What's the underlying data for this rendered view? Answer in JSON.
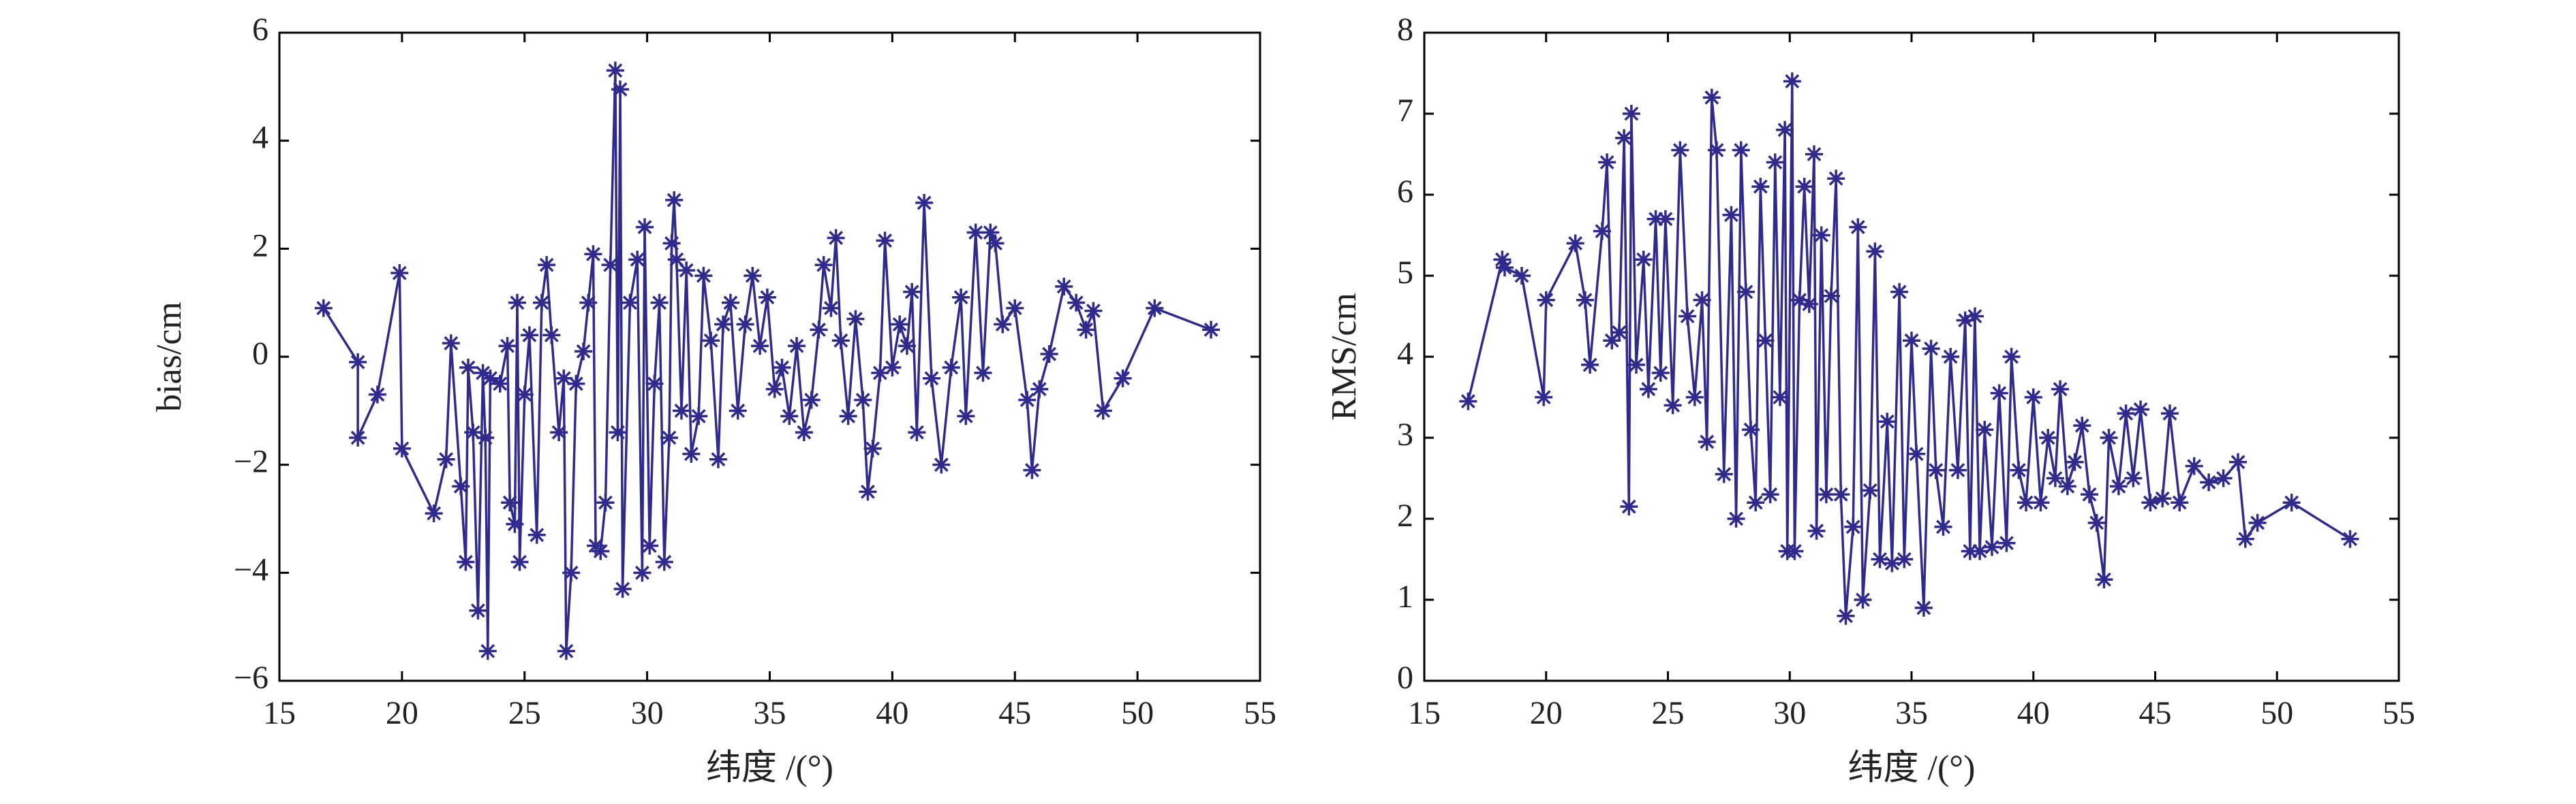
{
  "chart_data": [
    {
      "type": "line",
      "xlabel": "纬度 /(°)",
      "ylabel": "bias/cm",
      "xlim": [
        15,
        55
      ],
      "xticks": [
        15,
        20,
        25,
        30,
        35,
        40,
        45,
        50,
        55
      ],
      "ylim": [
        -6,
        6
      ],
      "yticks": [
        {
          "value": -6,
          "label": "−6"
        },
        {
          "value": -4,
          "label": "−4"
        },
        {
          "value": -2,
          "label": "−2"
        },
        0,
        2,
        4,
        6
      ],
      "x": [
        16.8,
        18.2,
        18.2,
        19,
        19.9,
        20,
        21.3,
        21.8,
        22,
        22.4,
        22.6,
        22.7,
        22.9,
        23.1,
        23.3,
        23.4,
        23.5,
        23.6,
        24,
        24.3,
        24.4,
        24.6,
        24.7,
        24.8,
        25,
        25.2,
        25.5,
        25.7,
        25.9,
        26.1,
        26.4,
        26.6,
        26.7,
        26.9,
        27.1,
        27.4,
        27.6,
        27.8,
        27.9,
        28.1,
        28.3,
        28.5,
        28.7,
        28.8,
        28.9,
        29,
        29.3,
        29.6,
        29.8,
        29.9,
        30.1,
        30.3,
        30.5,
        30.7,
        30.9,
        31,
        31.1,
        31.2,
        31.4,
        31.6,
        31.8,
        32.1,
        32.3,
        32.6,
        32.9,
        33.1,
        33.4,
        33.7,
        34,
        34.3,
        34.6,
        34.9,
        35.2,
        35.5,
        35.8,
        36.1,
        36.4,
        36.7,
        37,
        37.2,
        37.5,
        37.7,
        37.9,
        38.2,
        38.5,
        38.8,
        39,
        39.2,
        39.5,
        39.7,
        40,
        40.3,
        40.6,
        40.8,
        41,
        41.3,
        41.6,
        42,
        42.4,
        42.8,
        43,
        43.4,
        43.7,
        44,
        44.2,
        44.5,
        45,
        45.5,
        45.7,
        46,
        46.4,
        47,
        47.5,
        47.9,
        48.2,
        48.6,
        49.4,
        50.7,
        53
      ],
      "series": [
        {
          "color": "#2f2a8c",
          "values": [
            0.9,
            -0.1,
            -1.5,
            -0.7,
            1.55,
            -1.7,
            -2.9,
            -1.9,
            0.25,
            -2.4,
            -3.8,
            -0.2,
            -1.4,
            -4.7,
            -0.3,
            -1.5,
            -5.45,
            -0.4,
            -0.5,
            0.2,
            -2.7,
            -3.1,
            1.0,
            -3.8,
            -0.7,
            0.4,
            -3.3,
            1.0,
            1.7,
            0.4,
            -1.4,
            -0.4,
            -5.45,
            -4.0,
            -0.5,
            0.1,
            1.0,
            1.9,
            -3.5,
            -3.6,
            -2.7,
            1.7,
            5.3,
            -1.4,
            4.95,
            -4.3,
            1.0,
            1.8,
            -4.0,
            2.4,
            -3.5,
            -0.5,
            1.0,
            -3.8,
            -1.5,
            2.1,
            2.9,
            1.8,
            -1.0,
            1.6,
            -1.8,
            -1.1,
            1.5,
            0.3,
            -1.9,
            0.6,
            1.0,
            -1.0,
            0.6,
            1.5,
            0.2,
            1.1,
            -0.6,
            -0.2,
            -1.1,
            0.2,
            -1.4,
            -0.8,
            0.5,
            1.7,
            0.9,
            2.2,
            0.3,
            -1.1,
            0.7,
            -0.8,
            -2.5,
            -1.7,
            -0.3,
            2.15,
            -0.2,
            0.6,
            0.2,
            1.2,
            -1.4,
            2.85,
            -0.4,
            -2.0,
            -0.2,
            1.1,
            -1.1,
            2.3,
            -0.3,
            2.3,
            2.1,
            0.6,
            0.9,
            -0.8,
            -2.1,
            -0.6,
            0.05,
            1.3,
            1.0,
            0.5,
            0.85,
            -1.0,
            -0.4,
            0.9,
            0.5
          ]
        }
      ]
    },
    {
      "type": "line",
      "xlabel": "纬度 /(°)",
      "ylabel": "RMS/cm",
      "xlim": [
        15,
        55
      ],
      "xticks": [
        15,
        20,
        25,
        30,
        35,
        40,
        45,
        50,
        55
      ],
      "ylim": [
        0,
        8
      ],
      "yticks": [
        0,
        1,
        2,
        3,
        4,
        5,
        6,
        7,
        8
      ],
      "x": [
        16.8,
        18.2,
        18.3,
        19,
        19.9,
        20,
        21.2,
        21.6,
        21.8,
        22.3,
        22.5,
        22.7,
        23,
        23.2,
        23.4,
        23.5,
        23.7,
        24,
        24.2,
        24.5,
        24.7,
        24.9,
        25.2,
        25.5,
        25.8,
        26.1,
        26.4,
        26.6,
        26.8,
        27,
        27.3,
        27.6,
        27.8,
        28,
        28.2,
        28.4,
        28.6,
        28.8,
        29,
        29.2,
        29.4,
        29.6,
        29.8,
        29.9,
        30.1,
        30.2,
        30.4,
        30.6,
        30.8,
        31,
        31.1,
        31.3,
        31.5,
        31.7,
        31.9,
        32.1,
        32.3,
        32.6,
        32.8,
        33,
        33.3,
        33.5,
        33.7,
        34,
        34.2,
        34.5,
        34.7,
        35,
        35.2,
        35.5,
        35.8,
        36,
        36.3,
        36.6,
        36.9,
        37.2,
        37.4,
        37.6,
        37.8,
        38,
        38.3,
        38.6,
        38.9,
        39.1,
        39.4,
        39.7,
        40,
        40.3,
        40.6,
        40.9,
        41.1,
        41.4,
        41.7,
        42,
        42.3,
        42.6,
        42.9,
        43.1,
        43.5,
        43.8,
        44.1,
        44.4,
        44.8,
        45.3,
        45.6,
        46,
        46.6,
        47.2,
        47.8,
        48.4,
        48.7,
        49.2,
        50.6,
        53
      ],
      "series": [
        {
          "color": "#2f2a8c",
          "values": [
            3.45,
            5.2,
            5.1,
            5.0,
            3.5,
            4.7,
            5.4,
            4.7,
            3.9,
            5.55,
            6.4,
            4.2,
            4.3,
            6.7,
            2.15,
            7.0,
            3.9,
            5.2,
            3.6,
            5.7,
            3.8,
            5.7,
            3.4,
            6.55,
            4.5,
            3.5,
            4.7,
            2.95,
            7.2,
            6.55,
            2.55,
            5.75,
            2.0,
            6.55,
            4.8,
            3.1,
            2.2,
            6.1,
            4.2,
            2.3,
            6.4,
            3.5,
            6.8,
            1.6,
            7.4,
            1.6,
            4.7,
            6.1,
            4.65,
            6.5,
            1.85,
            5.5,
            2.3,
            4.75,
            6.2,
            2.3,
            0.8,
            1.9,
            5.6,
            1.0,
            2.35,
            5.3,
            1.5,
            3.2,
            1.45,
            4.8,
            1.5,
            4.2,
            2.8,
            0.9,
            4.1,
            2.6,
            1.9,
            4.0,
            2.6,
            4.45,
            1.6,
            4.5,
            1.6,
            3.1,
            1.65,
            3.55,
            1.7,
            4.0,
            2.6,
            2.2,
            3.5,
            2.2,
            3.0,
            2.5,
            3.6,
            2.4,
            2.7,
            3.15,
            2.3,
            1.95,
            1.25,
            3.0,
            2.4,
            3.3,
            2.5,
            3.35,
            2.2,
            2.25,
            3.3,
            2.2,
            2.65,
            2.45,
            2.5,
            2.7,
            1.75,
            1.95,
            2.2,
            1.75
          ]
        }
      ]
    }
  ]
}
